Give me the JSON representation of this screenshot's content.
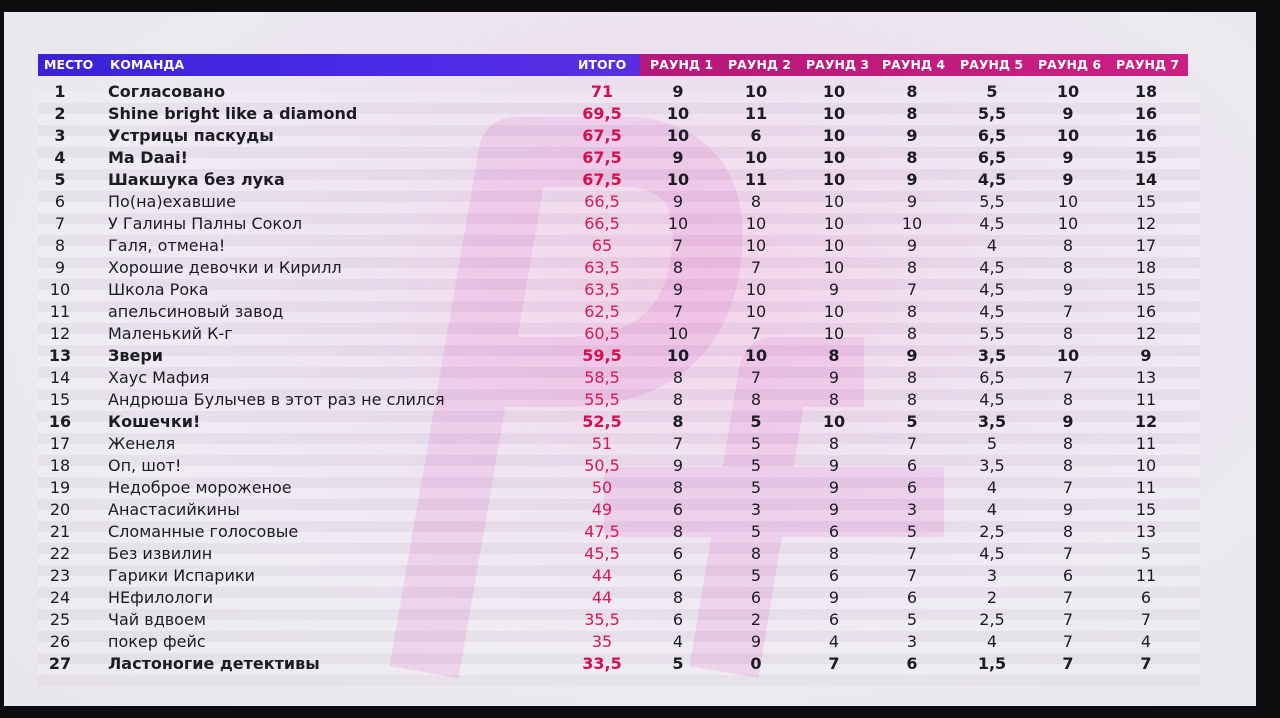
{
  "header": {
    "place": "МЕСТО",
    "team": "КОМАНДА",
    "total": "ИТОГО",
    "rounds": [
      "РАУНД 1",
      "РАУНД 2",
      "РАУНД 3",
      "РАУНД 4",
      "РАУНД 5",
      "РАУНД 6",
      "РАУНД 7"
    ]
  },
  "colors": {
    "header_left": "#4b2ae8",
    "header_right": "#cc1f82",
    "total_text": "#d4104f",
    "watermark": "#e27fd0"
  },
  "watermark_icon": "letters-logo-icon",
  "rows": [
    {
      "place": "1",
      "team": "Согласовано",
      "total": "71",
      "rounds": [
        "9",
        "10",
        "10",
        "8",
        "5",
        "10",
        "18"
      ],
      "bold": true
    },
    {
      "place": "2",
      "team": "Shine bright like a diamond",
      "total": "69,5",
      "rounds": [
        "10",
        "11",
        "10",
        "8",
        "5,5",
        "9",
        "16"
      ],
      "bold": true
    },
    {
      "place": "3",
      "team": "Устрицы паскуды",
      "total": "67,5",
      "rounds": [
        "10",
        "6",
        "10",
        "9",
        "6,5",
        "10",
        "16"
      ],
      "bold": true
    },
    {
      "place": "4",
      "team": "Ma Daai!",
      "total": "67,5",
      "rounds": [
        "9",
        "10",
        "10",
        "8",
        "6,5",
        "9",
        "15"
      ],
      "bold": true
    },
    {
      "place": "5",
      "team": "Шакшука без лука",
      "total": "67,5",
      "rounds": [
        "10",
        "11",
        "10",
        "9",
        "4,5",
        "9",
        "14"
      ],
      "bold": true
    },
    {
      "place": "6",
      "team": "По(на)ехавшие",
      "total": "66,5",
      "rounds": [
        "9",
        "8",
        "10",
        "9",
        "5,5",
        "10",
        "15"
      ],
      "bold": false
    },
    {
      "place": "7",
      "team": "У Галины Палны Сокол",
      "total": "66,5",
      "rounds": [
        "10",
        "10",
        "10",
        "10",
        "4,5",
        "10",
        "12"
      ],
      "bold": false
    },
    {
      "place": "8",
      "team": "Галя, отмена!",
      "total": "65",
      "rounds": [
        "7",
        "10",
        "10",
        "9",
        "4",
        "8",
        "17"
      ],
      "bold": false
    },
    {
      "place": "9",
      "team": "Хорошие девочки и Кирилл",
      "total": "63,5",
      "rounds": [
        "8",
        "7",
        "10",
        "8",
        "4,5",
        "8",
        "18"
      ],
      "bold": false
    },
    {
      "place": "10",
      "team": "Школа Рока",
      "total": "63,5",
      "rounds": [
        "9",
        "10",
        "9",
        "7",
        "4,5",
        "9",
        "15"
      ],
      "bold": false
    },
    {
      "place": "11",
      "team": "апельсиновый завод",
      "total": "62,5",
      "rounds": [
        "7",
        "10",
        "10",
        "8",
        "4,5",
        "7",
        "16"
      ],
      "bold": false
    },
    {
      "place": "12",
      "team": "Маленький К-г",
      "total": "60,5",
      "rounds": [
        "10",
        "7",
        "10",
        "8",
        "5,5",
        "8",
        "12"
      ],
      "bold": false
    },
    {
      "place": "13",
      "team": "Звери",
      "total": "59,5",
      "rounds": [
        "10",
        "10",
        "8",
        "9",
        "3,5",
        "10",
        "9"
      ],
      "bold": true
    },
    {
      "place": "14",
      "team": "Хаус Мафия",
      "total": "58,5",
      "rounds": [
        "8",
        "7",
        "9",
        "8",
        "6,5",
        "7",
        "13"
      ],
      "bold": false
    },
    {
      "place": "15",
      "team": "Андрюша Булычев в этот раз не слился",
      "total": "55,5",
      "rounds": [
        "8",
        "8",
        "8",
        "8",
        "4,5",
        "8",
        "11"
      ],
      "bold": false
    },
    {
      "place": "16",
      "team": "Кошечки!",
      "total": "52,5",
      "rounds": [
        "8",
        "5",
        "10",
        "5",
        "3,5",
        "9",
        "12"
      ],
      "bold": true
    },
    {
      "place": "17",
      "team": "Женеля",
      "total": "51",
      "rounds": [
        "7",
        "5",
        "8",
        "7",
        "5",
        "8",
        "11"
      ],
      "bold": false
    },
    {
      "place": "18",
      "team": "Оп, шот!",
      "total": "50,5",
      "rounds": [
        "9",
        "5",
        "9",
        "6",
        "3,5",
        "8",
        "10"
      ],
      "bold": false
    },
    {
      "place": "19",
      "team": "Недоброе мороженое",
      "total": "50",
      "rounds": [
        "8",
        "5",
        "9",
        "6",
        "4",
        "7",
        "11"
      ],
      "bold": false
    },
    {
      "place": "20",
      "team": "Анастасийкины",
      "total": "49",
      "rounds": [
        "6",
        "3",
        "9",
        "3",
        "4",
        "9",
        "15"
      ],
      "bold": false
    },
    {
      "place": "21",
      "team": "Сломанные голосовые",
      "total": "47,5",
      "rounds": [
        "8",
        "5",
        "6",
        "5",
        "2,5",
        "8",
        "13"
      ],
      "bold": false
    },
    {
      "place": "22",
      "team": "Без извилин",
      "total": "45,5",
      "rounds": [
        "6",
        "8",
        "8",
        "7",
        "4,5",
        "7",
        "5"
      ],
      "bold": false
    },
    {
      "place": "23",
      "team": "Гарики Испарики",
      "total": "44",
      "rounds": [
        "6",
        "5",
        "6",
        "7",
        "3",
        "6",
        "11"
      ],
      "bold": false
    },
    {
      "place": "24",
      "team": "НЕфилологи",
      "total": "44",
      "rounds": [
        "8",
        "6",
        "9",
        "6",
        "2",
        "7",
        "6"
      ],
      "bold": false
    },
    {
      "place": "25",
      "team": "Чай вдвоем",
      "total": "35,5",
      "rounds": [
        "6",
        "2",
        "6",
        "5",
        "2,5",
        "7",
        "7"
      ],
      "bold": false
    },
    {
      "place": "26",
      "team": "покер фейс",
      "total": "35",
      "rounds": [
        "4",
        "9",
        "4",
        "3",
        "4",
        "7",
        "4"
      ],
      "bold": false
    },
    {
      "place": "27",
      "team": "Ластоногие детективы",
      "total": "33,5",
      "rounds": [
        "5",
        "0",
        "7",
        "6",
        "1,5",
        "7",
        "7"
      ],
      "bold": true
    }
  ]
}
